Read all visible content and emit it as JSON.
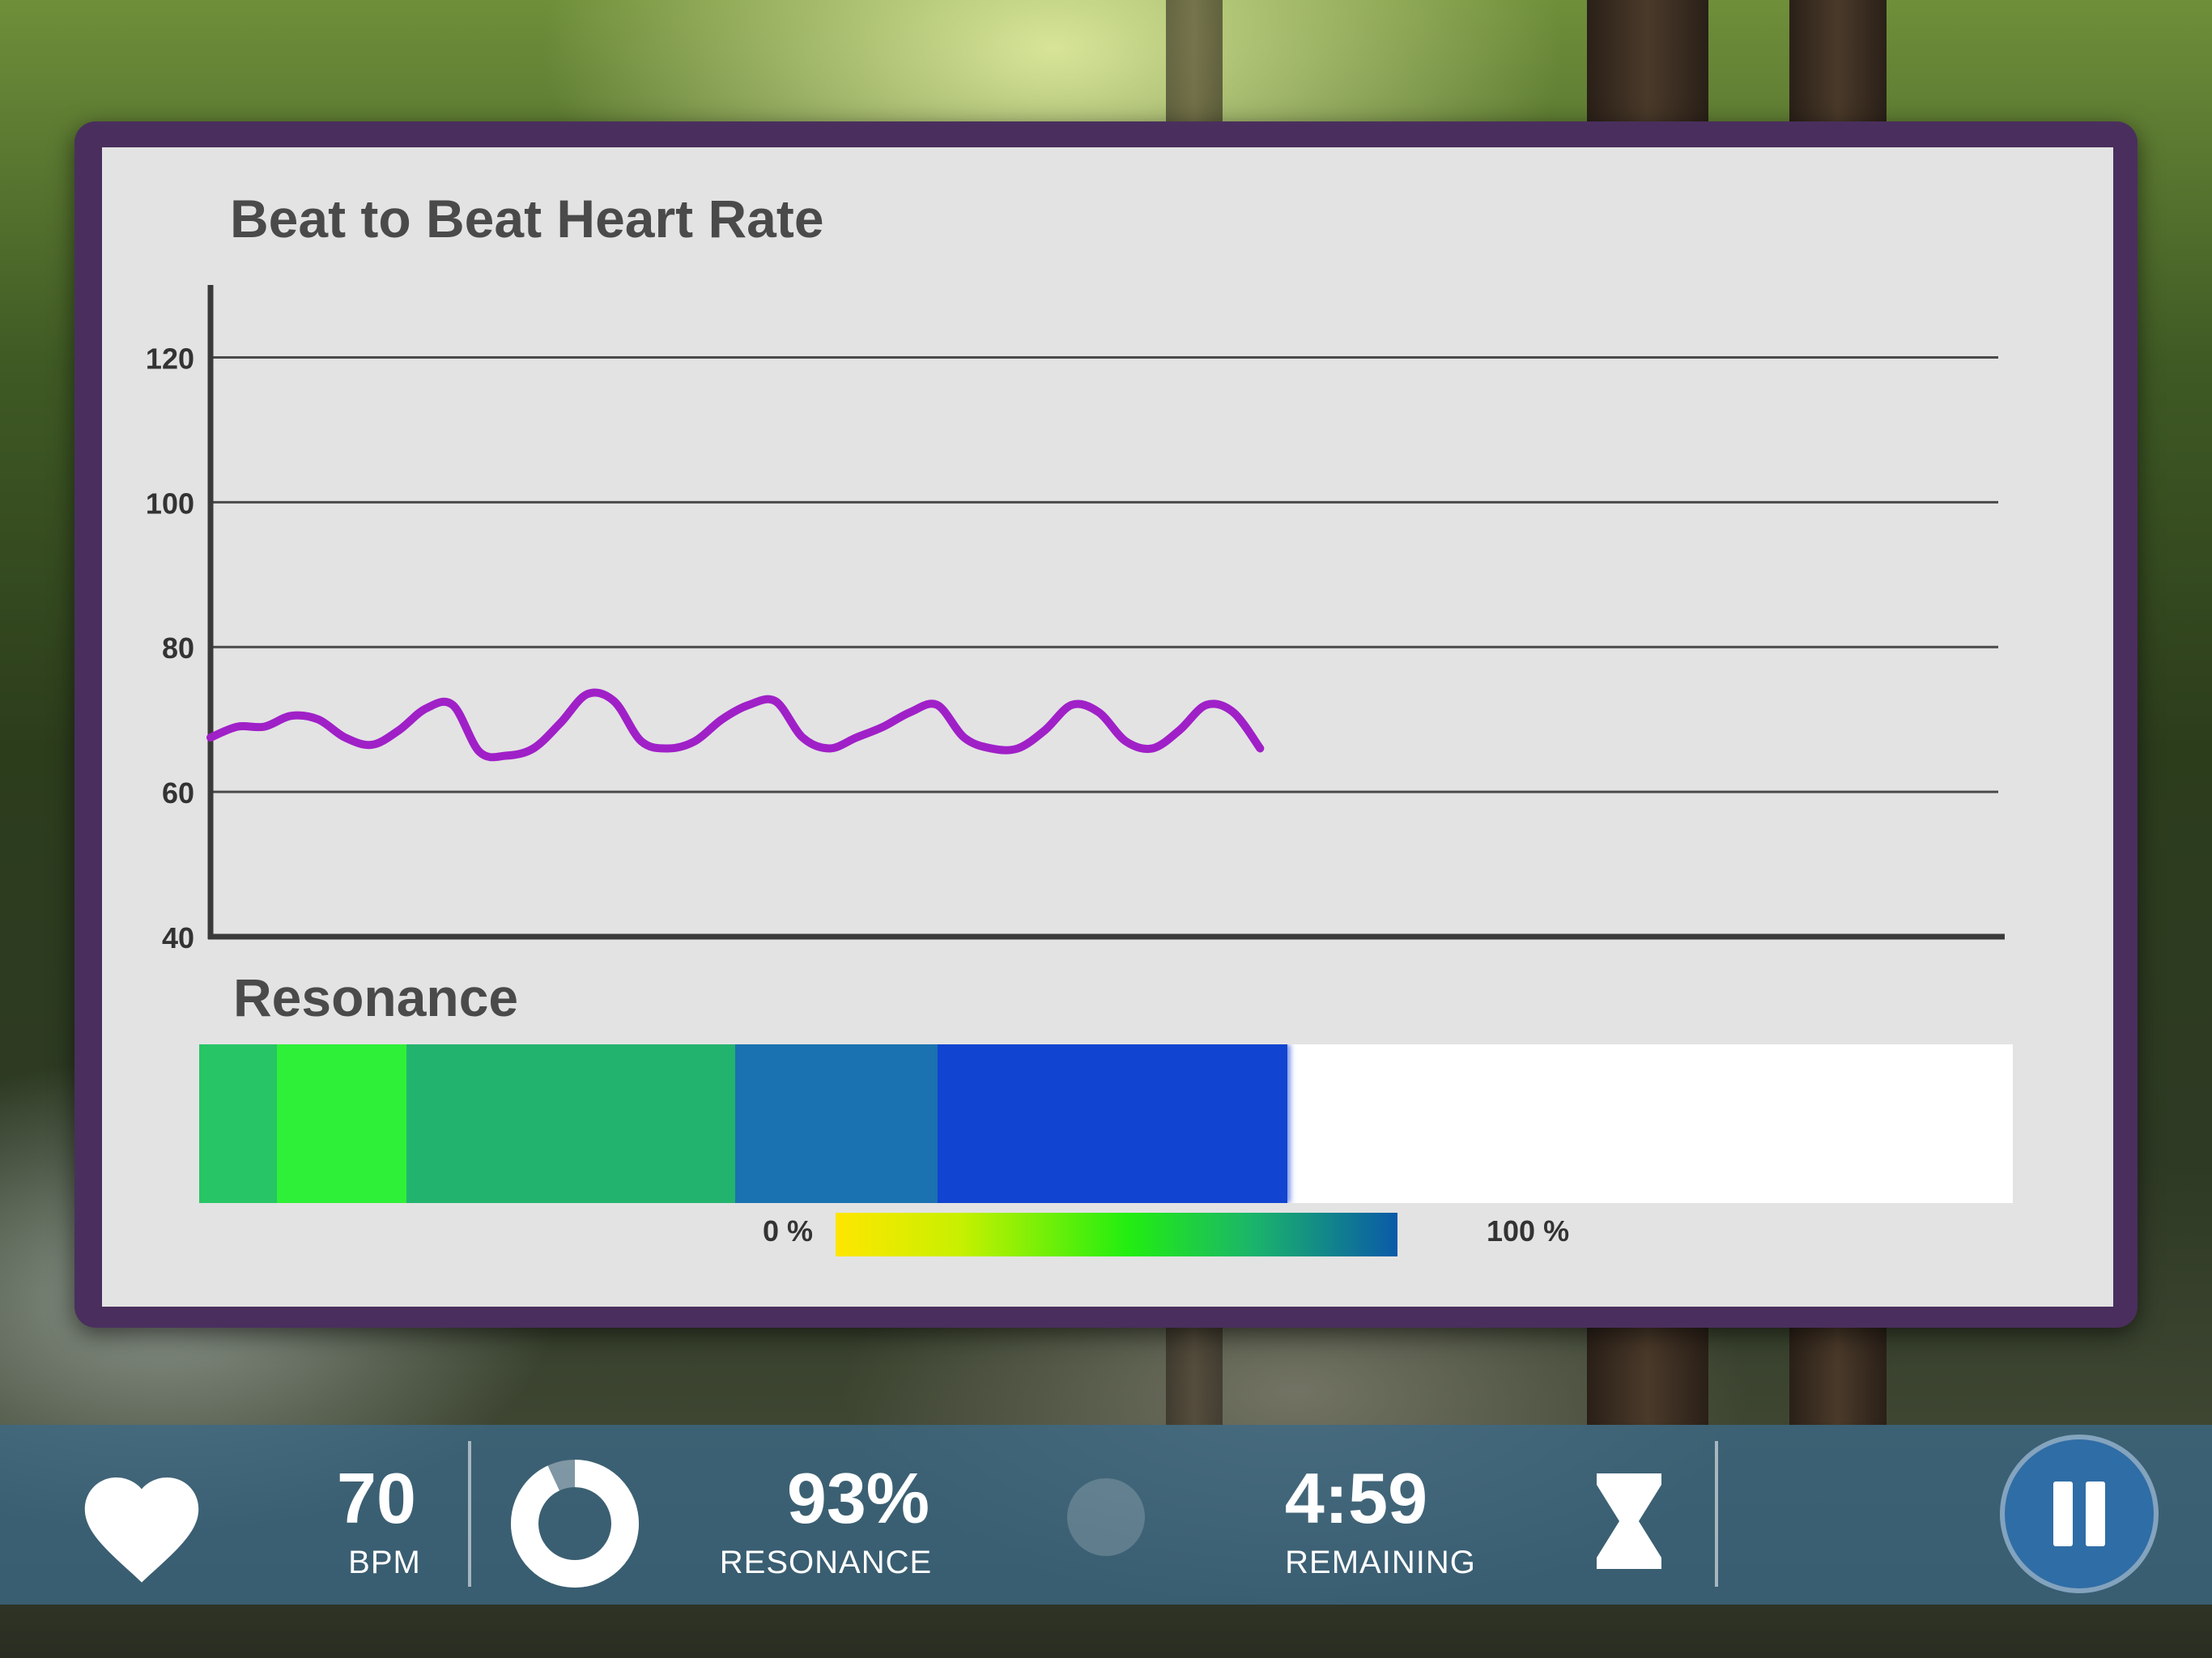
{
  "chart": {
    "title": "Beat to Beat Heart Rate",
    "y_ticks": [
      "120",
      "100",
      "80",
      "60",
      "40"
    ]
  },
  "chart_data": {
    "type": "line",
    "title": "Beat to Beat Heart Rate",
    "xlabel": "",
    "ylabel": "",
    "ylim": [
      40,
      130
    ],
    "yticks": [
      40,
      60,
      80,
      100,
      120
    ],
    "xlim": [
      0,
      100
    ],
    "grid": true,
    "series": [
      {
        "color": "#a020c8",
        "x": [
          0,
          1.5,
          3,
          4.5,
          6,
          7.5,
          9,
          10.5,
          12,
          13.5,
          15,
          16.5,
          18,
          19.5,
          21,
          22.5,
          24,
          25.5,
          27,
          28.5,
          30,
          31.5,
          33,
          34.5,
          36,
          37.5,
          39,
          40.5,
          42,
          43.5,
          45,
          46.5,
          48,
          49.5,
          51,
          52.5,
          54,
          55.5,
          57,
          58.5
        ],
        "y": [
          67.5,
          69,
          69,
          70.5,
          70,
          67.5,
          66.5,
          68.5,
          71.5,
          72,
          65.5,
          65,
          66,
          69.5,
          73.5,
          72.5,
          67,
          66,
          67,
          70,
          72,
          72.5,
          67.5,
          66,
          67.5,
          69,
          71,
          72,
          67.5,
          66,
          66,
          68.5,
          72,
          71,
          67,
          66,
          68.5,
          72,
          71,
          66
        ]
      }
    ]
  },
  "resonance": {
    "title": "Resonance",
    "fill_fraction": 0.6,
    "segments": [
      {
        "color": "#27c566"
      },
      {
        "color": "#2ef038"
      },
      {
        "color": "#22b46e"
      },
      {
        "color": "#1a72b0"
      },
      {
        "color": "#1144d0"
      }
    ],
    "legend_min": "0 %",
    "legend_max": "100 %"
  },
  "stats": {
    "bpm_value": "70",
    "bpm_label": "BPM",
    "resonance_value": "93%",
    "resonance_label": "RESONANCE",
    "resonance_fraction": 0.93,
    "time_value": "4:59",
    "time_label": "REMAINING"
  },
  "icons": {
    "heart": "heart-icon",
    "donut": "resonance-ring-icon",
    "hourglass": "hourglass-icon",
    "pause": "pause-icon"
  }
}
